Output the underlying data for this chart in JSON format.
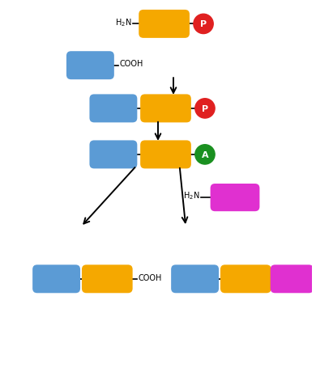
{
  "bg_color": "#ffffff",
  "blue": "#5b9bd5",
  "gold": "#f5a800",
  "red": "#e02020",
  "green": "#1a9020",
  "magenta": "#e030d0",
  "text_color": "#000000",
  "figsize": [
    3.9,
    4.56
  ],
  "dpi": 100,
  "xlim": [
    0,
    10
  ],
  "ylim": [
    0,
    12
  ]
}
